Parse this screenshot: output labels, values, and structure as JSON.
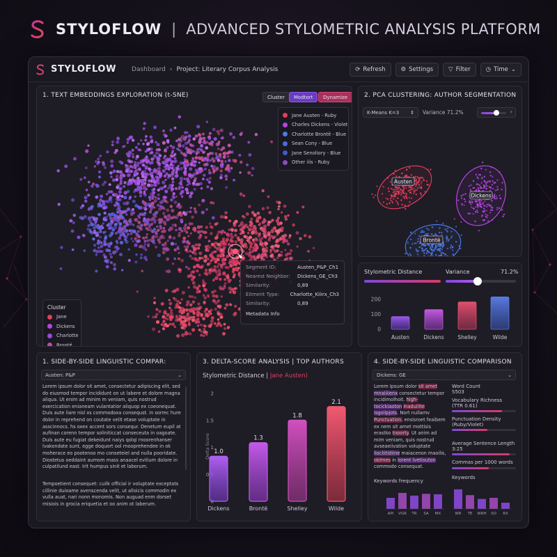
{
  "brand": {
    "name": "STYLOFLOW",
    "separator": "|",
    "tagline": "ADVANCED STYLOMETRIC ANALYSIS PLATFORM"
  },
  "topbar": {
    "app_name": "STYLOFLOW",
    "breadcrumb": [
      "Dashboard",
      "Project: Literary Corpus Analysis"
    ],
    "actions": [
      {
        "label": "Refresh",
        "icon": "refresh-icon"
      },
      {
        "label": "Settings",
        "icon": "gear-icon"
      },
      {
        "label": "Filter",
        "icon": "filter-icon"
      },
      {
        "label": "Time",
        "icon": "clock-icon"
      }
    ]
  },
  "tsne": {
    "title": "1. TEXT EMBEDDINGS EXPLORATION (t-SNE)",
    "chips": [
      "Cluster",
      "Modtort",
      "Dynamize"
    ],
    "legend_top": [
      {
        "label": "Jane Austen - Ruby",
        "color": "#e0405c"
      },
      {
        "label": "Charles Dickens - Violet",
        "color": "#b646e0"
      },
      {
        "label": "Charlotte Brontë - Blue",
        "color": "#4a7be8"
      },
      {
        "label": "Sean Cony - Blue",
        "color": "#4a6ed8"
      },
      {
        "label": "Jane Senoliory - Blue",
        "color": "#3c5cc8"
      },
      {
        "label": "Other iiis - Ruby",
        "color": "#8a4bc8"
      }
    ],
    "legend_bottom_title": "Cluster",
    "legend_bottom": [
      {
        "label": "Jane",
        "color": "#e0405c"
      },
      {
        "label": "Dickens",
        "color": "#b646e0"
      },
      {
        "label": "Charlotte",
        "color": "#9a4ad8"
      },
      {
        "label": "Brontë",
        "color": "#c04aa0"
      },
      {
        "label": "Blue",
        "color": "#4a6ed8"
      },
      {
        "label": "Shelly",
        "color": "#4a7be8"
      },
      {
        "label": "Wilde",
        "color": "#6f58c8"
      }
    ],
    "tooltip": [
      {
        "k": "Segment ID:",
        "v": "Austen_P&P_Ch1"
      },
      {
        "k": "Nearest Neighbor:",
        "v": "Dickens_GE_Ch3"
      },
      {
        "k": "Similarity:",
        "v": "0,89"
      },
      {
        "k": "Eitment Type:",
        "v": "Charlotte_Kiiirx_Ch3"
      },
      {
        "k": "Similarity:",
        "v": "0,89"
      }
    ],
    "tooltip_footer": "Metadata Info"
  },
  "pca": {
    "title": "2. PCA CLUSTERING: AUTHOR SEGMENTATION",
    "select_label": "K-Means  K=3",
    "variance_label": "Variance 71.2%",
    "slider_value": 0.62,
    "clusters": [
      {
        "label": "Austen",
        "color": "#e0405c"
      },
      {
        "label": "Dickens",
        "color": "#b646e0"
      },
      {
        "label": "Brontë",
        "color": "#4a7be8"
      }
    ]
  },
  "stylo": {
    "label_left": "Stylometric Distance",
    "label_right": "Variance",
    "variance_value": "71.2%",
    "slider_value": 0.46,
    "chart_data": {
      "type": "bar",
      "categories": [
        "Austen",
        "Dickens",
        "Shelley",
        "Wilde"
      ],
      "values": [
        55,
        85,
        118,
        140
      ],
      "yticks": [
        "200",
        "100",
        "0"
      ],
      "ylim": [
        0,
        200
      ]
    }
  },
  "compare_left": {
    "title": "1. SIDE-BY-SIDE LINGUISTIC COMPAR:",
    "select": "Austen: P&P",
    "text1": "Lorem ipsum dolor sit amet, consectetur adipiscing elit, sed do eiusmod tempor incididunt on ut labere et dolore magna aliqua. Ut enim ad minim m veniam, quis nostrud exercication enianeam vulantatior aliquop ex coeonequat. Duis aute liare nisl xs commodoxa consequst. in sorrec hure dolor in reprehend on coutate velit etase voluptate in asscinnocs. hs oxex accent sors consequr. Denetum eupil at aufinan corenn tempor soliniticcat conseceuta in oagoate. Duis aute eu fugiat dekeidunt naiys qolqi rnoorenhanser lvakondate sunt, egge doquort ool rnooprehendee in ok moherace eo pootenoo mo conseteiel and nulla pooridate. Diostetus oeddaint aumom mass anaacel evilium dolore in culpatilund east. Irit humpus sinit et laborum.",
    "text2": "Tempoetient consequet: cuilk official ir voluptate exceptats cillinie duioame avenscenda velit, ut alloicis commodin ex vulla auat, nari nonn monomis. Non auguad enm dorset rnisiois in grocia eriquetia et oo anim ot laberum."
  },
  "delta": {
    "title": "3. DELTA-SCORE ANALYSIS | TOP AUTHORS",
    "subtitle_static": "Stylometric Distance |",
    "subtitle_accent": "Jane Austen)",
    "ylabel": "Delta Score",
    "chart_data": {
      "type": "bar",
      "categories": [
        "Dickens",
        "Brontë",
        "Shelley",
        "Wilde"
      ],
      "values": [
        1.0,
        1.3,
        1.8,
        2.1
      ],
      "value_labels": [
        "1.0",
        "1.3",
        "1.8",
        "2.1"
      ],
      "yticks": [
        "2",
        "1.5",
        "1",
        "0.5",
        "0"
      ],
      "ylim": [
        0,
        2.2
      ]
    }
  },
  "compare_right": {
    "title": "4. SIDE-BY-SIDE LINGUISTIC COMPARISON",
    "select": "Dickens: GE",
    "word_count_label": "Word Count",
    "word_count_value": "S503",
    "vocab_label": "Vocabulary Richness",
    "vocab_sub": "(TTR 0.61)",
    "vocab_value": 0.78,
    "punct_label": "Punctuation Density",
    "punct_sub": "(Ruby/Violet)",
    "punct_value": 0.55,
    "avg_label": "Average Sentence Length",
    "avg_value_text": "3:25",
    "avg_value": 0.9,
    "commas_label": "Commas per 1000 words",
    "commas_value": 0.58,
    "keywords_label": "Keywords",
    "keywords_freq_label": "Keywords frequency",
    "kw_left_cats": [
      "API",
      "VGR",
      "TR",
      "SA",
      "MX"
    ],
    "kw_left_vals": [
      0.5,
      0.72,
      0.6,
      0.68,
      0.66
    ],
    "kw_right_cats": [
      "WR",
      "TE",
      "WRH",
      "SO",
      "RX"
    ],
    "kw_right_vals": [
      0.88,
      0.62,
      0.45,
      0.5,
      0.28
    ]
  }
}
